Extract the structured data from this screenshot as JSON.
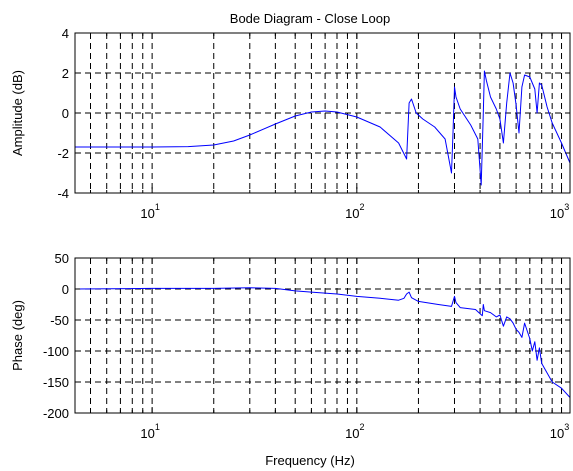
{
  "title": "Bode Diagram - Close Loop",
  "xlabel": "Frequency (Hz)",
  "colors": {
    "line": "#0000ff",
    "axes": "#000000",
    "grid": "#000000",
    "background": "#ffffff"
  },
  "chart_data": [
    {
      "type": "line",
      "title": "Bode Diagram - Close Loop",
      "xlabel": "",
      "ylabel": "Amplitude (dB)",
      "xscale": "log",
      "xlim": [
        4.2,
        1100
      ],
      "ylim": [
        -4,
        4
      ],
      "yticks": [
        -4,
        -2,
        0,
        2,
        4
      ],
      "xticks": [
        {
          "base": "10",
          "exp": "1",
          "value": 10
        },
        {
          "base": "10",
          "exp": "2",
          "value": 100
        },
        {
          "base": "10",
          "exp": "3",
          "value": 1000
        }
      ],
      "grid": true,
      "series": [
        {
          "x": [
            4.2,
            10,
            15,
            20,
            25,
            30,
            40,
            50,
            60,
            70,
            80,
            100,
            130,
            160,
            175,
            180,
            185,
            195,
            210,
            240,
            270,
            290,
            295,
            300,
            305,
            320,
            360,
            390,
            405,
            415,
            420,
            430,
            450,
            480,
            500,
            520,
            540,
            560,
            580,
            600,
            620,
            640,
            660,
            700,
            740,
            760,
            780,
            800,
            850,
            900,
            1000,
            1100
          ],
          "y": [
            -1.7,
            -1.7,
            -1.68,
            -1.6,
            -1.4,
            -1.1,
            -0.55,
            -0.15,
            0.05,
            0.1,
            0.05,
            -0.2,
            -0.7,
            -1.5,
            -2.3,
            0.5,
            0.7,
            0.0,
            -0.3,
            -0.7,
            -1.3,
            -3.0,
            -1.0,
            1.3,
            0.8,
            0.2,
            -0.6,
            -1.3,
            -3.6,
            0.0,
            2.1,
            1.6,
            0.8,
            0.2,
            -0.3,
            -1.5,
            0.5,
            2.0,
            1.5,
            0.4,
            -1.0,
            1.3,
            1.9,
            1.8,
            1.2,
            0.0,
            1.5,
            1.4,
            0.3,
            -0.5,
            -1.5,
            -2.5
          ]
        }
      ]
    },
    {
      "type": "line",
      "title": "",
      "xlabel": "Frequency (Hz)",
      "ylabel": "Phase (deg)",
      "xscale": "log",
      "xlim": [
        4.2,
        1100
      ],
      "ylim": [
        -200,
        50
      ],
      "yticks": [
        -200,
        -150,
        -100,
        -50,
        0,
        50
      ],
      "xticks": [
        {
          "base": "10",
          "exp": "1",
          "value": 10
        },
        {
          "base": "10",
          "exp": "2",
          "value": 100
        },
        {
          "base": "10",
          "exp": "3",
          "value": 1000
        }
      ],
      "grid": true,
      "series": [
        {
          "x": [
            4.2,
            10,
            20,
            30,
            40,
            50,
            60,
            80,
            100,
            130,
            160,
            170,
            175,
            180,
            185,
            200,
            250,
            290,
            300,
            305,
            320,
            380,
            400,
            410,
            415,
            420,
            450,
            480,
            500,
            520,
            540,
            560,
            580,
            600,
            620,
            640,
            660,
            700,
            720,
            740,
            760,
            780,
            800,
            900,
            1000,
            1100
          ],
          "y": [
            0,
            1,
            1,
            2,
            1,
            -3,
            -5,
            -8,
            -12,
            -15,
            -18,
            -15,
            -8,
            -5,
            -14,
            -20,
            -25,
            -28,
            -12,
            -22,
            -30,
            -33,
            -40,
            -43,
            -25,
            -35,
            -38,
            -45,
            -42,
            -60,
            -45,
            -48,
            -55,
            -65,
            -70,
            -78,
            -55,
            -80,
            -100,
            -85,
            -115,
            -95,
            -120,
            -150,
            -160,
            -175
          ]
        }
      ]
    }
  ]
}
